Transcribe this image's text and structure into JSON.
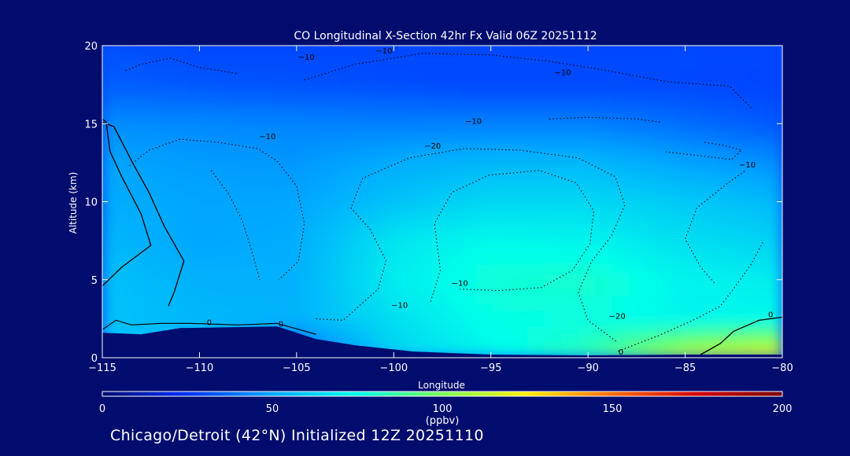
{
  "chart_data": {
    "type": "heatmap",
    "title": "CO Longitudinal X-Section 42hr  Fx Valid 06Z 20251112",
    "xlabel": "Longitude",
    "ylabel": "Altitude (km)",
    "xlim": [
      -115,
      -80
    ],
    "ylim": [
      0,
      20
    ],
    "x_ticks": [
      -115,
      -110,
      -105,
      -100,
      -95,
      -90,
      -85,
      -80
    ],
    "x_tick_labels": [
      "−115",
      "−110",
      "−105",
      "−100",
      "−95",
      "−90",
      "−85",
      "−80"
    ],
    "y_ticks": [
      0,
      5,
      10,
      15,
      20
    ],
    "y_tick_labels": [
      "0",
      "5",
      "10",
      "15",
      "20"
    ],
    "colorbar": {
      "label": "(ppbv)",
      "min": 0,
      "max": 200,
      "ticks": [
        0,
        50,
        100,
        150,
        200
      ],
      "tick_labels": [
        "0",
        "50",
        "100",
        "150",
        "200"
      ],
      "colors": [
        "#000c6e",
        "#0030ff",
        "#00a6ff",
        "#00ffea",
        "#7aff5a",
        "#ffee00",
        "#ff6a00",
        "#d40000",
        "#7a0000"
      ]
    },
    "terrain_km": [
      [
        -115,
        1.6
      ],
      [
        -113,
        1.5
      ],
      [
        -111,
        1.9
      ],
      [
        -106,
        2.0
      ],
      [
        -104,
        1.2
      ],
      [
        -102,
        0.8
      ],
      [
        -99,
        0.4
      ],
      [
        -95,
        0.2
      ],
      [
        -90,
        0.15
      ],
      [
        -85,
        0.2
      ],
      [
        -80,
        0.2
      ]
    ],
    "co_field_ppbv": {
      "x": [
        -115,
        -110,
        -105,
        -100,
        -95,
        -90,
        -85,
        -80
      ],
      "y": [
        0,
        2.5,
        5,
        7.5,
        10,
        12.5,
        15,
        17.5,
        20
      ],
      "z": [
        [
          null,
          null,
          30,
          62,
          72,
          85,
          115,
          125
        ],
        [
          58,
          55,
          54,
          66,
          76,
          76,
          72,
          74
        ],
        [
          58,
          53,
          53,
          70,
          78,
          80,
          72,
          70
        ],
        [
          55,
          50,
          52,
          68,
          74,
          72,
          66,
          62
        ],
        [
          52,
          50,
          50,
          58,
          64,
          64,
          60,
          55
        ],
        [
          50,
          48,
          47,
          52,
          55,
          55,
          50,
          45
        ],
        [
          45,
          44,
          43,
          42,
          42,
          42,
          38,
          33
        ],
        [
          35,
          33,
          32,
          31,
          30,
          30,
          30,
          29
        ],
        [
          32,
          30,
          30,
          30,
          30,
          30,
          30,
          30
        ]
      ]
    },
    "contour_labels": [
      "−10",
      "−10",
      "−10",
      "−10",
      "−20",
      "−10",
      "−10",
      "−20",
      "−10",
      "−10",
      "0",
      "0",
      "0",
      "0"
    ]
  },
  "footer_text": "Chicago/Detroit (42°N) Initialized 12Z 20251110"
}
